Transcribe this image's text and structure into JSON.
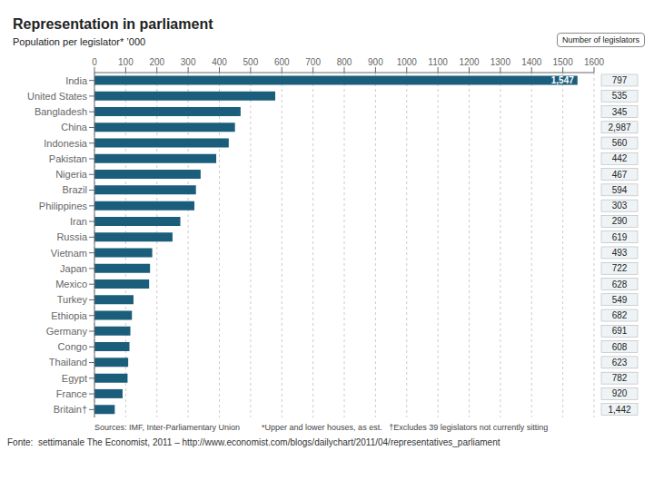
{
  "chart_data": {
    "type": "bar",
    "orientation": "horizontal",
    "title": "Representation in parliament",
    "subtitle": "Population per legislator* ’000",
    "categories": [
      "India",
      "United States",
      "Bangladesh",
      "China",
      "Indonesia",
      "Pakistan",
      "Nigeria",
      "Brazil",
      "Philippines",
      "Iran",
      "Russia",
      "Vietnam",
      "Japan",
      "Mexico",
      "Turkey",
      "Ethiopia",
      "Germany",
      "Congo",
      "Thailand",
      "Egypt",
      "France",
      "Britain†"
    ],
    "values": [
      1547,
      579,
      468,
      450,
      430,
      390,
      340,
      325,
      320,
      275,
      250,
      185,
      178,
      175,
      125,
      120,
      115,
      112,
      108,
      106,
      90,
      65
    ],
    "color": "#1b5e7b",
    "xlim": [
      0,
      1600
    ],
    "xticks": [
      0,
      100,
      200,
      300,
      400,
      500,
      600,
      700,
      800,
      900,
      1000,
      1100,
      1200,
      1300,
      1400,
      1500,
      1600
    ],
    "grid": true,
    "num_legislators_title": "Number of legislators",
    "num_legislators": [
      797,
      535,
      345,
      2987,
      560,
      442,
      467,
      594,
      303,
      290,
      619,
      493,
      722,
      628,
      549,
      682,
      691,
      608,
      623,
      782,
      920,
      1442
    ],
    "num_legislators_labels": [
      "797",
      "535",
      "345",
      "2,987",
      "560",
      "442",
      "467",
      "594",
      "303",
      "290",
      "619",
      "493",
      "722",
      "628",
      "549",
      "682",
      "691",
      "608",
      "623",
      "782",
      "920",
      "1,442"
    ],
    "annotations": [
      {
        "text": "1,547",
        "category": "India",
        "value": 1547
      }
    ],
    "source": "Sources: IMF, Inter-Parliamentary Union",
    "footnote": "*Upper and lower houses, as est.   †Excludes 39 legislators not currently sitting",
    "caption": "Fonte:  settimanale The Economist, 2011 – http://www.economist.com/blogs/dailychart/2011/04/representatives_parliament"
  }
}
